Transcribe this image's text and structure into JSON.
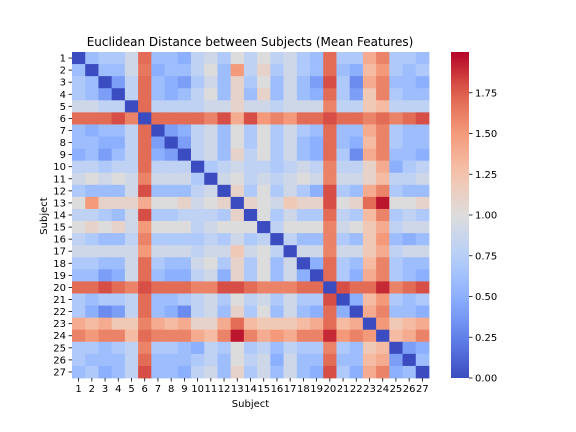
{
  "chart_data": {
    "type": "heatmap",
    "title": "Euclidean Distance between Subjects (Mean Features)",
    "xlabel": "Subject",
    "ylabel": "Subject",
    "x_tick_labels": [
      "1",
      "2",
      "3",
      "4",
      "5",
      "6",
      "7",
      "8",
      "9",
      "10",
      "11",
      "12",
      "13",
      "14",
      "15",
      "16",
      "17",
      "18",
      "19",
      "20",
      "21",
      "22",
      "23",
      "24",
      "25",
      "26",
      "27"
    ],
    "y_tick_labels": [
      "1",
      "2",
      "3",
      "4",
      "5",
      "6",
      "7",
      "8",
      "9",
      "10",
      "11",
      "12",
      "13",
      "14",
      "15",
      "16",
      "17",
      "18",
      "19",
      "20",
      "21",
      "22",
      "23",
      "24",
      "25",
      "26",
      "27"
    ],
    "colormap": "coolwarm",
    "vmin": 0.0,
    "vmax": 2.0,
    "colorbar_ticks": [
      0.0,
      0.25,
      0.5,
      0.75,
      1.0,
      1.25,
      1.5,
      1.75
    ],
    "colorbar_tick_labels": [
      "0.00",
      "0.25",
      "0.50",
      "0.75",
      "1.00",
      "1.25",
      "1.50",
      "1.75"
    ],
    "values": [
      [
        0.0,
        0.6,
        0.7,
        0.7,
        0.9,
        1.7,
        0.6,
        0.6,
        0.5,
        0.8,
        0.9,
        0.7,
        1.0,
        0.8,
        1.0,
        0.8,
        0.9,
        0.7,
        0.6,
        1.7,
        0.7,
        0.7,
        1.4,
        1.6,
        0.7,
        0.7,
        0.6
      ],
      [
        0.6,
        0.0,
        0.6,
        0.6,
        0.9,
        1.65,
        0.5,
        0.6,
        0.6,
        0.8,
        1.0,
        0.6,
        1.5,
        0.8,
        1.1,
        0.7,
        0.9,
        0.7,
        0.6,
        1.7,
        0.6,
        0.5,
        1.3,
        1.5,
        0.7,
        0.6,
        0.7
      ],
      [
        0.7,
        0.6,
        0.0,
        0.4,
        0.8,
        1.7,
        0.6,
        0.5,
        0.4,
        0.7,
        0.9,
        0.6,
        1.1,
        0.7,
        1.0,
        0.6,
        0.9,
        0.6,
        0.4,
        1.8,
        0.7,
        0.3,
        1.4,
        1.6,
        0.6,
        0.6,
        0.5
      ],
      [
        0.7,
        0.6,
        0.4,
        0.0,
        0.8,
        1.7,
        0.6,
        0.5,
        0.6,
        0.8,
        1.0,
        0.6,
        1.1,
        0.6,
        1.1,
        0.6,
        0.9,
        0.6,
        0.5,
        1.7,
        0.7,
        0.4,
        1.2,
        1.6,
        0.7,
        0.6,
        0.6
      ],
      [
        0.9,
        0.9,
        0.8,
        0.8,
        0.0,
        1.7,
        0.8,
        0.8,
        0.8,
        0.8,
        0.9,
        0.9,
        1.1,
        0.9,
        0.9,
        0.8,
        0.9,
        0.9,
        0.9,
        1.6,
        0.8,
        0.8,
        1.2,
        1.3,
        0.8,
        0.8,
        0.8
      ],
      [
        1.7,
        1.7,
        1.7,
        1.8,
        1.6,
        0.0,
        1.7,
        1.7,
        1.7,
        1.7,
        1.6,
        1.8,
        1.4,
        1.8,
        1.5,
        1.6,
        1.5,
        1.7,
        1.7,
        1.8,
        1.7,
        1.7,
        1.6,
        1.7,
        1.6,
        1.7,
        1.8
      ],
      [
        0.6,
        0.5,
        0.6,
        0.6,
        0.8,
        1.7,
        0.0,
        0.4,
        0.5,
        0.8,
        0.9,
        0.6,
        1.0,
        0.7,
        1.0,
        0.7,
        0.9,
        0.7,
        0.6,
        1.7,
        0.6,
        0.6,
        1.4,
        1.6,
        0.7,
        0.6,
        0.6
      ],
      [
        0.6,
        0.6,
        0.5,
        0.5,
        0.8,
        1.7,
        0.4,
        0.0,
        0.4,
        0.8,
        0.9,
        0.6,
        1.0,
        0.7,
        1.0,
        0.7,
        0.9,
        0.6,
        0.5,
        1.7,
        0.6,
        0.5,
        1.3,
        1.6,
        0.7,
        0.6,
        0.6
      ],
      [
        0.5,
        0.6,
        0.4,
        0.6,
        0.8,
        1.7,
        0.5,
        0.4,
        0.0,
        0.8,
        0.9,
        0.6,
        1.1,
        0.8,
        1.0,
        0.7,
        0.9,
        0.6,
        0.5,
        1.7,
        0.7,
        0.3,
        1.4,
        1.6,
        0.6,
        0.6,
        0.5
      ],
      [
        0.8,
        0.8,
        0.7,
        0.8,
        0.8,
        1.7,
        0.8,
        0.8,
        0.8,
        0.0,
        0.7,
        0.8,
        0.9,
        0.8,
        0.8,
        0.7,
        0.8,
        0.9,
        0.8,
        1.6,
        0.8,
        0.8,
        1.1,
        1.4,
        0.5,
        0.7,
        0.8
      ],
      [
        0.9,
        1.0,
        0.9,
        1.0,
        0.9,
        1.6,
        0.9,
        0.9,
        0.9,
        0.7,
        0.0,
        0.9,
        1.0,
        0.8,
        0.9,
        0.8,
        0.9,
        1.0,
        0.9,
        1.6,
        0.9,
        0.9,
        1.1,
        1.3,
        0.8,
        0.8,
        0.9
      ],
      [
        0.7,
        0.6,
        0.6,
        0.6,
        0.9,
        1.8,
        0.6,
        0.6,
        0.6,
        0.8,
        0.9,
        0.0,
        1.1,
        0.7,
        1.0,
        0.7,
        0.9,
        0.7,
        0.5,
        1.8,
        0.7,
        0.6,
        1.4,
        1.6,
        0.7,
        0.6,
        0.6
      ],
      [
        1.0,
        1.5,
        1.1,
        1.1,
        1.1,
        1.4,
        1.0,
        1.0,
        1.1,
        0.9,
        1.0,
        1.1,
        0.0,
        1.1,
        1.0,
        0.9,
        1.2,
        1.1,
        1.1,
        1.8,
        1.0,
        1.1,
        1.7,
        1.95,
        1.0,
        1.0,
        1.1
      ],
      [
        0.8,
        0.8,
        0.7,
        0.6,
        0.9,
        1.8,
        0.7,
        0.7,
        0.8,
        0.8,
        0.8,
        0.7,
        1.1,
        0.0,
        1.0,
        0.7,
        0.9,
        0.7,
        0.7,
        1.7,
        0.8,
        0.7,
        1.3,
        1.6,
        0.7,
        0.8,
        0.7
      ],
      [
        1.0,
        1.1,
        1.0,
        1.1,
        0.9,
        1.5,
        1.0,
        1.0,
        1.0,
        0.8,
        0.9,
        1.0,
        1.0,
        1.0,
        0.0,
        0.8,
        1.0,
        1.0,
        1.0,
        1.6,
        0.9,
        1.0,
        1.2,
        1.4,
        0.8,
        0.9,
        0.9
      ],
      [
        0.8,
        0.7,
        0.6,
        0.6,
        0.8,
        1.6,
        0.7,
        0.7,
        0.7,
        0.7,
        0.8,
        0.7,
        0.9,
        0.7,
        0.8,
        0.0,
        0.8,
        0.6,
        0.6,
        1.6,
        0.7,
        0.6,
        1.2,
        1.5,
        0.6,
        0.5,
        0.6
      ],
      [
        0.9,
        0.9,
        0.9,
        0.9,
        0.9,
        1.5,
        0.9,
        0.9,
        0.9,
        0.8,
        0.9,
        0.9,
        1.2,
        0.9,
        1.0,
        0.8,
        0.0,
        0.9,
        0.9,
        1.6,
        0.9,
        0.9,
        1.2,
        1.4,
        0.8,
        0.9,
        0.9
      ],
      [
        0.7,
        0.7,
        0.6,
        0.6,
        0.9,
        1.7,
        0.7,
        0.6,
        0.6,
        0.9,
        1.0,
        0.7,
        1.1,
        0.7,
        1.0,
        0.6,
        0.9,
        0.0,
        0.5,
        1.7,
        0.7,
        0.6,
        1.3,
        1.6,
        0.7,
        0.6,
        0.6
      ],
      [
        0.6,
        0.6,
        0.4,
        0.5,
        0.9,
        1.7,
        0.6,
        0.5,
        0.5,
        0.8,
        0.9,
        0.5,
        1.1,
        0.7,
        1.0,
        0.6,
        0.9,
        0.5,
        0.0,
        1.7,
        0.7,
        0.5,
        1.4,
        1.6,
        0.7,
        0.6,
        0.5
      ],
      [
        1.7,
        1.7,
        1.8,
        1.7,
        1.6,
        1.8,
        1.7,
        1.7,
        1.7,
        1.6,
        1.6,
        1.8,
        1.8,
        1.7,
        1.6,
        1.6,
        1.6,
        1.7,
        1.7,
        0.0,
        1.8,
        1.7,
        1.7,
        1.9,
        1.6,
        1.7,
        1.8
      ],
      [
        0.7,
        0.6,
        0.7,
        0.7,
        0.8,
        1.7,
        0.6,
        0.6,
        0.7,
        0.8,
        0.9,
        0.7,
        1.0,
        0.8,
        0.9,
        0.7,
        0.9,
        0.7,
        0.7,
        1.8,
        0.0,
        0.5,
        1.3,
        1.5,
        0.7,
        0.6,
        0.7
      ],
      [
        0.7,
        0.5,
        0.3,
        0.4,
        0.8,
        1.7,
        0.6,
        0.5,
        0.3,
        0.8,
        0.9,
        0.6,
        1.1,
        0.7,
        1.0,
        0.6,
        0.9,
        0.6,
        0.5,
        1.7,
        0.5,
        0.0,
        1.4,
        1.6,
        0.6,
        0.6,
        0.5
      ],
      [
        1.4,
        1.3,
        1.4,
        1.2,
        1.2,
        1.6,
        1.4,
        1.3,
        1.4,
        1.1,
        1.1,
        1.4,
        1.7,
        1.3,
        1.2,
        1.2,
        1.2,
        1.3,
        1.4,
        1.7,
        1.3,
        1.4,
        0.0,
        1.5,
        1.2,
        1.3,
        1.4
      ],
      [
        1.6,
        1.5,
        1.6,
        1.6,
        1.3,
        1.7,
        1.6,
        1.6,
        1.6,
        1.4,
        1.3,
        1.6,
        1.95,
        1.6,
        1.4,
        1.5,
        1.4,
        1.6,
        1.6,
        1.9,
        1.5,
        1.6,
        1.5,
        0.0,
        1.3,
        1.4,
        1.6
      ],
      [
        0.7,
        0.7,
        0.6,
        0.7,
        0.8,
        1.6,
        0.7,
        0.7,
        0.6,
        0.5,
        0.8,
        0.7,
        1.0,
        0.7,
        0.8,
        0.6,
        0.8,
        0.7,
        0.7,
        1.6,
        0.7,
        0.6,
        1.2,
        1.3,
        0.0,
        0.4,
        0.5
      ],
      [
        0.7,
        0.6,
        0.6,
        0.6,
        0.8,
        1.7,
        0.6,
        0.6,
        0.6,
        0.7,
        0.8,
        0.6,
        1.0,
        0.8,
        0.9,
        0.5,
        0.9,
        0.6,
        0.6,
        1.7,
        0.6,
        0.6,
        1.3,
        1.4,
        0.4,
        0.0,
        0.6
      ],
      [
        0.6,
        0.7,
        0.5,
        0.6,
        0.8,
        1.8,
        0.6,
        0.6,
        0.5,
        0.8,
        0.9,
        0.6,
        1.1,
        0.7,
        0.9,
        0.6,
        0.9,
        0.6,
        0.5,
        1.8,
        0.7,
        0.5,
        1.4,
        1.6,
        0.5,
        0.6,
        0.0
      ]
    ]
  }
}
